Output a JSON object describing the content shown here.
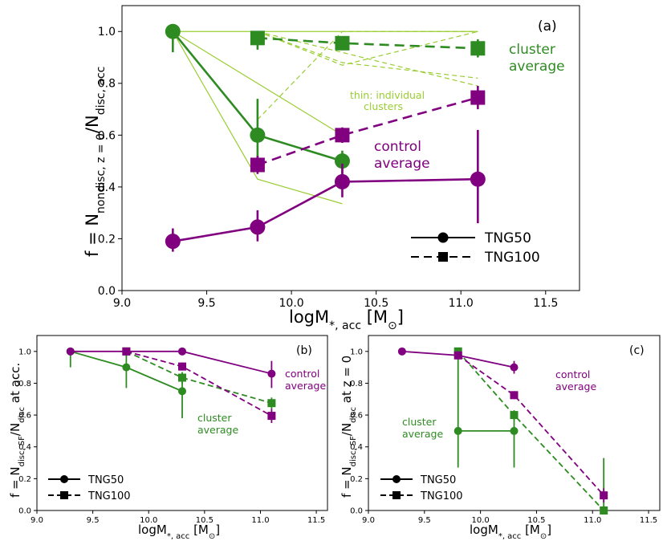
{
  "colors": {
    "green": "#2e8b22",
    "light_green": "#9acd32",
    "purple": "#800080",
    "black": "#000000"
  },
  "chart_data": [
    {
      "id": "a",
      "type": "line",
      "panel_label": "(a)",
      "xlabel": "logM*,acc [M⊙]",
      "ylabel": "f = Nnondisc,z=0/Ndisc,acc",
      "xlim": [
        9.0,
        11.7
      ],
      "ylim": [
        0.0,
        1.1
      ],
      "xticks": [
        9.0,
        9.5,
        10.0,
        10.5,
        11.0,
        11.5
      ],
      "xtick_labels": [
        "9.0",
        "9.5",
        "10.0",
        "10.5",
        "11.0",
        "11.5"
      ],
      "yticks": [
        0.0,
        0.2,
        0.4,
        0.6,
        0.8,
        1.0
      ],
      "ytick_labels": [
        "0.0",
        "0.2",
        "0.4",
        "0.6",
        "0.8",
        "1.0"
      ],
      "series": [
        {
          "name": "individual cluster TNG50",
          "style": "thin",
          "color": "light_green",
          "dash": false,
          "x": [
            9.3,
            9.8,
            10.3
          ],
          "y": [
            1.0,
            0.43,
            0.335
          ]
        },
        {
          "name": "individual cluster TNG50",
          "style": "thin",
          "color": "light_green",
          "dash": false,
          "x": [
            9.3,
            10.3
          ],
          "y": [
            1.0,
            0.6
          ]
        },
        {
          "name": "individual cluster TNG50",
          "style": "thin",
          "color": "light_green",
          "dash": false,
          "x": [
            9.3,
            11.1
          ],
          "y": [
            1.0,
            1.0
          ]
        },
        {
          "name": "individual cluster TNG100",
          "style": "thin",
          "color": "light_green",
          "dash": true,
          "x": [
            9.8,
            10.3,
            11.1
          ],
          "y": [
            1.0,
            0.87,
            1.0
          ]
        },
        {
          "name": "individual cluster TNG100",
          "style": "thin",
          "color": "light_green",
          "dash": true,
          "x": [
            9.8,
            10.3,
            11.1
          ],
          "y": [
            1.0,
            0.88,
            0.82
          ]
        },
        {
          "name": "individual cluster TNG100",
          "style": "thin",
          "color": "light_green",
          "dash": true,
          "x": [
            9.8,
            11.1
          ],
          "y": [
            1.0,
            0.79
          ]
        },
        {
          "name": "individual cluster TNG100",
          "style": "thin",
          "color": "light_green",
          "dash": true,
          "x": [
            9.8,
            10.3,
            11.1
          ],
          "y": [
            0.66,
            1.0,
            1.0
          ]
        },
        {
          "name": "cluster average TNG50",
          "style": "avg",
          "color": "green",
          "dash": false,
          "marker": "circle",
          "x": [
            9.3,
            9.8,
            10.3
          ],
          "y": [
            1.0,
            0.6,
            0.5
          ],
          "err": [
            [
              0.92,
              1.0
            ],
            [
              0.47,
              0.74
            ],
            [
              0.45,
              0.54
            ]
          ]
        },
        {
          "name": "cluster average TNG100",
          "style": "avg",
          "color": "green",
          "dash": true,
          "marker": "square",
          "x": [
            9.8,
            10.3,
            11.1
          ],
          "y": [
            0.975,
            0.955,
            0.935
          ],
          "err": [
            [
              0.93,
              1.0
            ],
            [
              0.93,
              0.98
            ],
            [
              0.9,
              0.97
            ]
          ]
        },
        {
          "name": "control average TNG50",
          "style": "avg",
          "color": "purple",
          "dash": false,
          "marker": "circle",
          "x": [
            9.3,
            9.8,
            10.3,
            11.1
          ],
          "y": [
            0.19,
            0.245,
            0.42,
            0.43
          ],
          "err": [
            [
              0.15,
              0.24
            ],
            [
              0.19,
              0.31
            ],
            [
              0.36,
              0.49
            ],
            [
              0.26,
              0.62
            ]
          ]
        },
        {
          "name": "control average TNG100",
          "style": "avg",
          "color": "purple",
          "dash": true,
          "marker": "square",
          "x": [
            9.8,
            10.3,
            11.1
          ],
          "y": [
            0.485,
            0.6,
            0.745
          ],
          "err": [
            [
              0.45,
              0.52
            ],
            [
              0.57,
              0.63
            ],
            [
              0.7,
              0.79
            ]
          ]
        }
      ],
      "annotations": [
        {
          "key": "cluster_average_1",
          "text": "cluster",
          "color": "green"
        },
        {
          "key": "cluster_average_2",
          "text": "average",
          "color": "green"
        },
        {
          "key": "control_average_1",
          "text": "control",
          "color": "purple"
        },
        {
          "key": "control_average_2",
          "text": "average",
          "color": "purple"
        },
        {
          "key": "thin_note_1",
          "text": "thin: individual",
          "color": "light_green"
        },
        {
          "key": "thin_note_2",
          "text": "clusters",
          "color": "light_green"
        }
      ],
      "legend": [
        {
          "label": "TNG50",
          "marker": "circle",
          "dash": false
        },
        {
          "label": "TNG100",
          "marker": "square",
          "dash": true
        }
      ],
      "legend_position": "lower-right"
    },
    {
      "id": "b",
      "type": "line",
      "panel_label": "(b)",
      "xlabel": "logM*,acc [M⊙]",
      "ylabel": "f = Ndisc,SF/Ndisc at acc.",
      "xlim": [
        9.0,
        11.6
      ],
      "ylim": [
        0.0,
        1.1
      ],
      "xticks": [
        9.0,
        9.5,
        10.0,
        10.5,
        11.0,
        11.5
      ],
      "xtick_labels": [
        "9.0",
        "9.5",
        "10.0",
        "10.5",
        "11.0",
        "11.5"
      ],
      "yticks": [
        0.0,
        0.2,
        0.4,
        0.6,
        0.8,
        1.0
      ],
      "ytick_labels": [
        "0.0",
        "0.2",
        "0.4",
        "0.6",
        "0.8",
        "1.0"
      ],
      "series": [
        {
          "name": "cluster average TNG50",
          "color": "green",
          "dash": false,
          "marker": "circle",
          "x": [
            9.3,
            9.8,
            10.3
          ],
          "y": [
            1.0,
            0.9,
            0.75
          ],
          "err": [
            [
              0.9,
              1.0
            ],
            [
              0.77,
              0.98
            ],
            [
              0.58,
              0.85
            ]
          ]
        },
        {
          "name": "cluster average TNG100",
          "color": "green",
          "dash": true,
          "marker": "square",
          "x": [
            9.8,
            10.3,
            11.1
          ],
          "y": [
            1.0,
            0.835,
            0.675
          ],
          "err": [
            [
              0.98,
              1.0
            ],
            [
              0.8,
              0.87
            ],
            [
              0.64,
              0.71
            ]
          ]
        },
        {
          "name": "control average TNG50",
          "color": "purple",
          "dash": false,
          "marker": "circle",
          "x": [
            9.3,
            10.3,
            11.1
          ],
          "y": [
            1.0,
            1.0,
            0.86
          ],
          "err": [
            [
              1.0,
              1.0
            ],
            [
              1.0,
              1.0
            ],
            [
              0.77,
              0.94
            ]
          ]
        },
        {
          "name": "control average TNG100",
          "color": "purple",
          "dash": true,
          "marker": "square",
          "x": [
            9.8,
            10.3,
            11.1
          ],
          "y": [
            1.0,
            0.905,
            0.595
          ],
          "err": [
            [
              1.0,
              1.0
            ],
            [
              0.88,
              0.93
            ],
            [
              0.55,
              0.64
            ]
          ]
        }
      ],
      "annotations": [
        {
          "key": "control_average_1",
          "text": "control",
          "color": "purple"
        },
        {
          "key": "control_average_2",
          "text": "average",
          "color": "purple"
        },
        {
          "key": "cluster_average_1",
          "text": "cluster",
          "color": "green"
        },
        {
          "key": "cluster_average_2",
          "text": "average",
          "color": "green"
        }
      ],
      "legend": [
        {
          "label": "TNG50",
          "marker": "circle",
          "dash": false
        },
        {
          "label": "TNG100",
          "marker": "square",
          "dash": true
        }
      ],
      "legend_position": "lower-left"
    },
    {
      "id": "c",
      "type": "line",
      "panel_label": "(c)",
      "xlabel": "logM*,acc [M⊙]",
      "ylabel": "f = Ndisc,SF/Ndisc at z = 0",
      "xlim": [
        9.0,
        11.6
      ],
      "ylim": [
        0.0,
        1.1
      ],
      "xticks": [
        9.0,
        9.5,
        10.0,
        10.5,
        11.0,
        11.5
      ],
      "xtick_labels": [
        "9.0",
        "9.5",
        "10.0",
        "10.5",
        "11.0",
        "11.5"
      ],
      "yticks": [
        0.0,
        0.2,
        0.4,
        0.6,
        0.8,
        1.0
      ],
      "ytick_labels": [
        "0.0",
        "0.2",
        "0.4",
        "0.6",
        "0.8",
        "1.0"
      ],
      "series": [
        {
          "name": "cluster average TNG50",
          "color": "green",
          "dash": false,
          "marker": "circle",
          "x": [
            9.8,
            10.3
          ],
          "y": [
            0.5,
            0.5
          ],
          "err": [
            [
              0.27,
              1.0
            ],
            [
              0.27,
              0.6
            ]
          ]
        },
        {
          "name": "cluster average TNG100",
          "color": "green",
          "dash": true,
          "marker": "square",
          "x": [
            9.8,
            10.3,
            11.1
          ],
          "y": [
            1.0,
            0.6,
            0.0
          ],
          "err": [
            [
              0.97,
              1.0
            ],
            [
              0.57,
              0.63
            ],
            [
              0.0,
              0.33
            ]
          ]
        },
        {
          "name": "control average TNG50",
          "color": "purple",
          "dash": false,
          "marker": "circle",
          "x": [
            9.3,
            9.8,
            10.3
          ],
          "y": [
            1.0,
            0.975,
            0.9
          ],
          "err": [
            [
              1.0,
              1.0
            ],
            [
              0.96,
              0.99
            ],
            [
              0.86,
              0.94
            ]
          ]
        },
        {
          "name": "control average TNG100",
          "color": "purple",
          "dash": true,
          "marker": "square",
          "x": [
            9.8,
            10.3,
            11.1
          ],
          "y": [
            0.975,
            0.725,
            0.095
          ],
          "err": [
            [
              0.96,
              0.99
            ],
            [
              0.7,
              0.75
            ],
            [
              0.05,
              0.14
            ]
          ]
        }
      ],
      "annotations": [
        {
          "key": "control_average_1",
          "text": "control",
          "color": "purple"
        },
        {
          "key": "control_average_2",
          "text": "average",
          "color": "purple"
        },
        {
          "key": "cluster_average_1",
          "text": "cluster",
          "color": "green"
        },
        {
          "key": "cluster_average_2",
          "text": "average",
          "color": "green"
        }
      ],
      "legend": [
        {
          "label": "TNG50",
          "marker": "circle",
          "dash": false
        },
        {
          "label": "TNG100",
          "marker": "square",
          "dash": true
        }
      ],
      "legend_position": "lower-left"
    }
  ]
}
